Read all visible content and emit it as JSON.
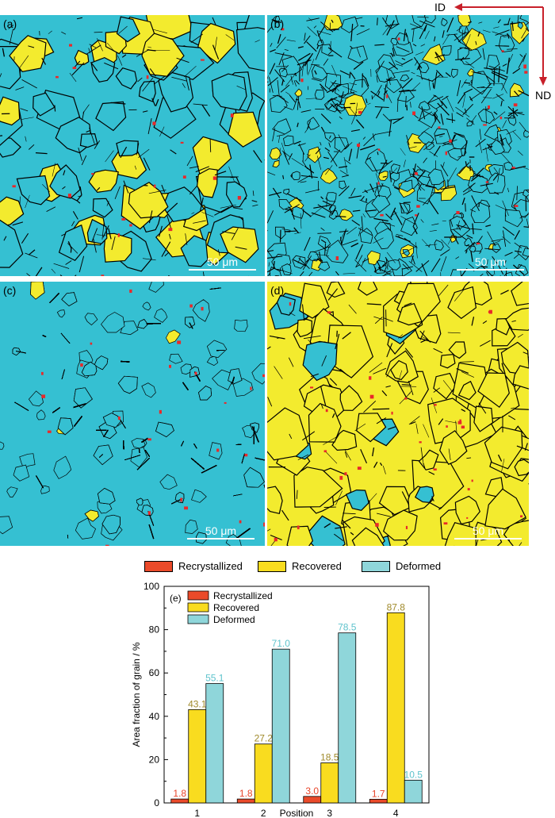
{
  "directions": {
    "id_label": "ID",
    "nd_label": "ND"
  },
  "panels": [
    {
      "label": "(a)",
      "scale_bar": "50 μm"
    },
    {
      "label": "(b)",
      "scale_bar": "50 μm"
    },
    {
      "label": "(c)",
      "scale_bar": "50 μm"
    },
    {
      "label": "(d)",
      "scale_bar": "50 μm"
    }
  ],
  "legend": [
    {
      "name": "Recrystallized",
      "color": "#ea4a2a"
    },
    {
      "name": "Recovered",
      "color": "#f9dc1f"
    },
    {
      "name": "Deformed",
      "color": "#8fd6da"
    }
  ],
  "map_colors": {
    "recrystallized": "#e8292a",
    "recovered": "#f3eb2e",
    "deformed": "#35c0d2",
    "boundary": "#000000"
  },
  "chart_data": {
    "type": "bar",
    "panel_label": "(e)",
    "categories": [
      "1",
      "2",
      "3",
      "4"
    ],
    "series": [
      {
        "name": "Recrystallized",
        "values": [
          1.8,
          1.8,
          3.0,
          1.7
        ],
        "color": "#ea4a2a",
        "label_color": "#e8452a"
      },
      {
        "name": "Recovered",
        "values": [
          43.1,
          27.2,
          18.5,
          87.8
        ],
        "color": "#f9dc1f",
        "label_color": "#a08a2a"
      },
      {
        "name": "Deformed",
        "values": [
          55.1,
          71.0,
          78.5,
          10.5
        ],
        "color": "#8fd6da",
        "label_color": "#5ec3cc"
      }
    ],
    "value_labels": [
      [
        "1.8",
        "1.8",
        "3.0",
        "1.7"
      ],
      [
        "43.1",
        "27.2",
        "18.5",
        "87.8"
      ],
      [
        "55.1",
        "71.0",
        "78.5",
        "10.5"
      ]
    ],
    "xlabel": "Position",
    "ylabel": "Area fraction of grain / %",
    "ylim": [
      0,
      100
    ],
    "yticks": [
      0,
      20,
      40,
      60,
      80,
      100
    ],
    "legend_position": "top-left",
    "grid": false
  }
}
